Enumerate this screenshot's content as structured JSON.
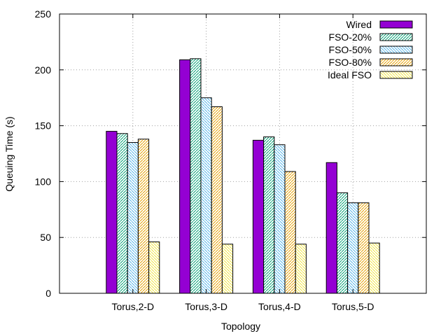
{
  "chart_data": {
    "type": "bar",
    "xlabel": "Topology",
    "ylabel": "Queuing Time (s)",
    "ylim": [
      0,
      250
    ],
    "yticks": [
      0,
      50,
      100,
      150,
      200,
      250
    ],
    "grid": true,
    "legend_position": "top-right",
    "categories": [
      "Torus,2-D",
      "Torus,3-D",
      "Torus,4-D",
      "Torus,5-D"
    ],
    "series": [
      {
        "name": "Wired",
        "color": "#9400d3",
        "pattern": "solid",
        "values": [
          145,
          209,
          137,
          117
        ]
      },
      {
        "name": "FSO-20%",
        "color": "#009e73",
        "pattern": "diag-right",
        "values": [
          143,
          210,
          140,
          90
        ]
      },
      {
        "name": "FSO-50%",
        "color": "#56b4e9",
        "pattern": "diag-left",
        "values": [
          135,
          175,
          133,
          81
        ]
      },
      {
        "name": "FSO-80%",
        "color": "#e69f00",
        "pattern": "diag-right",
        "values": [
          138,
          167,
          109,
          81
        ]
      },
      {
        "name": "Ideal FSO",
        "color": "#f0e442",
        "pattern": "diag-left",
        "values": [
          46,
          44,
          44,
          45
        ]
      }
    ]
  }
}
